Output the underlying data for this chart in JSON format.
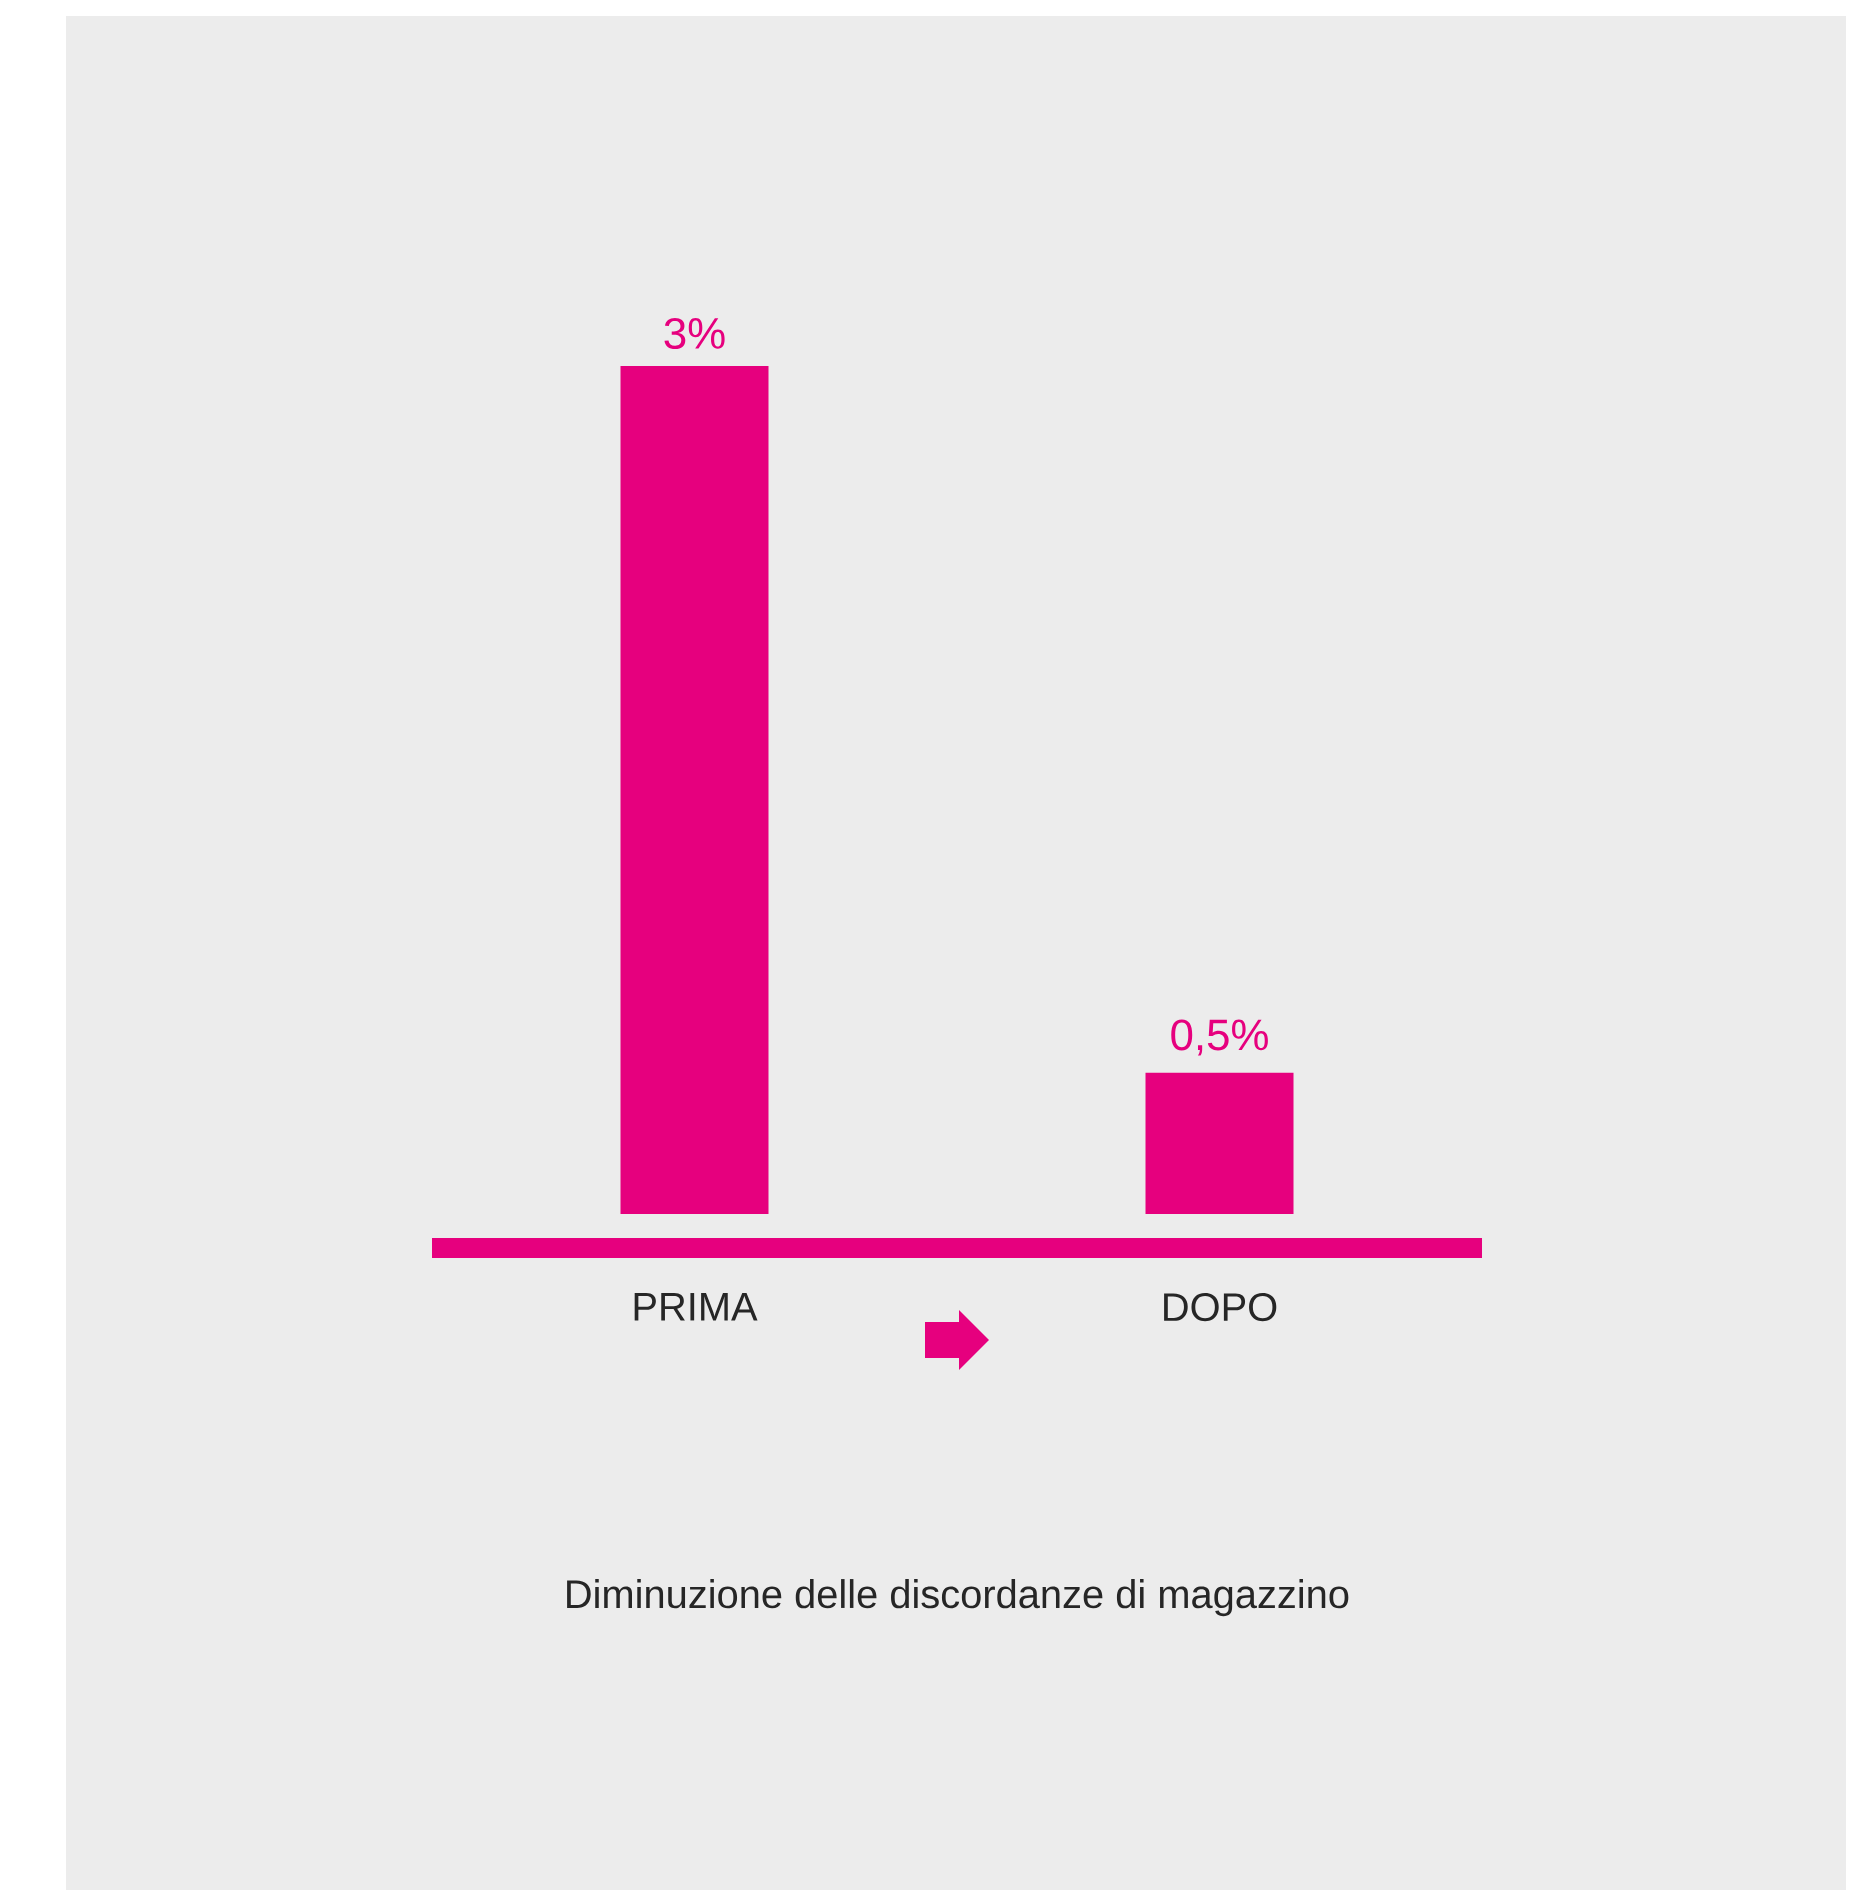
{
  "chart_data": {
    "type": "bar",
    "title": "Diminuzione delle discordanze di magazzino",
    "categories": [
      "PRIMA",
      "DOPO"
    ],
    "values": [
      3,
      0.5
    ],
    "value_labels": [
      "3%",
      "0,5%"
    ],
    "color": "#e6007e"
  }
}
